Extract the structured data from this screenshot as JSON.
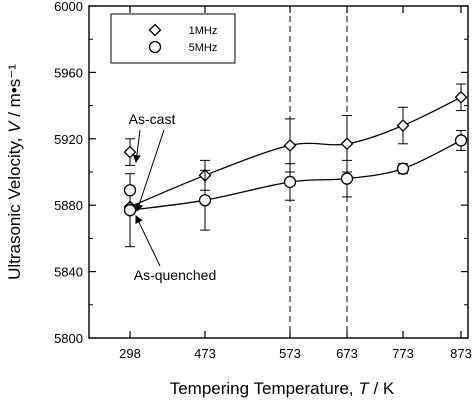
{
  "chart_data": {
    "type": "line",
    "xlabel_parts": [
      "Tempering Temperature, ",
      "T",
      " / K"
    ],
    "ylabel_parts": [
      "Ultrasonic Velocity, ",
      "V",
      " / m•s⁻¹"
    ],
    "x_categories": [
      "298",
      "473",
      "573",
      "673",
      "773",
      "873"
    ],
    "ylim": [
      5800,
      6000
    ],
    "y_ticks": [
      "5800",
      "5840",
      "5880",
      "5920",
      "5960",
      "6000"
    ],
    "y_tick_values": [
      5800,
      5840,
      5880,
      5920,
      5960,
      6000
    ],
    "vertical_reference_lines": [
      "573",
      "673"
    ],
    "legend_position": "top-left",
    "series": [
      {
        "name": "1MHz",
        "marker": "diamond",
        "values": [
          5879,
          5898,
          5916,
          5917,
          5928,
          5945
        ],
        "error": [
          0,
          9,
          16,
          17,
          11,
          8
        ]
      },
      {
        "name": "5MHz",
        "marker": "circle",
        "values": [
          5877,
          5883,
          5894,
          5896,
          5902,
          5919
        ],
        "error": [
          22,
          18,
          11,
          11,
          3,
          6
        ]
      }
    ],
    "extra_points": [
      {
        "x": "298",
        "series": "1MHz",
        "value": 5912,
        "error": 8
      },
      {
        "x": "298",
        "series": "5MHz",
        "value": 5889,
        "error": 0
      }
    ],
    "annotations": [
      {
        "text": "As-cast",
        "points_to": [
          "1MHz 298 upper",
          "5MHz 298 upper"
        ]
      },
      {
        "text": "As-quenched",
        "points_to": [
          "298 lower points"
        ]
      }
    ]
  }
}
